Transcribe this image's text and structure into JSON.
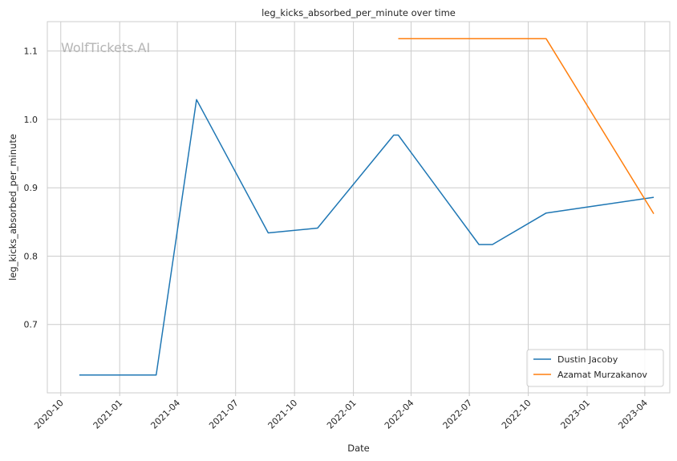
{
  "chart_data": {
    "type": "line",
    "title": "leg_kicks_absorbed_per_minute over time",
    "xlabel": "Date",
    "ylabel": "leg_kicks_absorbed_per_minute",
    "watermark": "WolfTickets.AI",
    "x_ticks": [
      "2020-10",
      "2021-01",
      "2021-04",
      "2021-07",
      "2021-10",
      "2022-01",
      "2022-04",
      "2022-07",
      "2022-10",
      "2023-01",
      "2023-04"
    ],
    "y_ticks": [
      "0.7",
      "0.8",
      "0.9",
      "1.0",
      "1.1"
    ],
    "xlim": [
      "2020-09-10",
      "2023-05-10"
    ],
    "ylim": [
      0.6,
      1.143
    ],
    "grid": true,
    "legend_position": "lower-right",
    "series": [
      {
        "name": "Dustin Jacoby",
        "color": "#1f77b4",
        "points": [
          {
            "x": "2020-10-30",
            "y": 0.626
          },
          {
            "x": "2021-02-27",
            "y": 0.626
          },
          {
            "x": "2021-05-01",
            "y": 1.029
          },
          {
            "x": "2021-08-21",
            "y": 0.834
          },
          {
            "x": "2021-11-06",
            "y": 0.841
          },
          {
            "x": "2022-03-05",
            "y": 0.977
          },
          {
            "x": "2022-03-12",
            "y": 0.977
          },
          {
            "x": "2022-07-16",
            "y": 0.817
          },
          {
            "x": "2022-08-06",
            "y": 0.817
          },
          {
            "x": "2022-10-29",
            "y": 0.863
          },
          {
            "x": "2023-04-15",
            "y": 0.886
          }
        ]
      },
      {
        "name": "Azamat Murzakanov",
        "color": "#ff7f0e",
        "points": [
          {
            "x": "2022-03-12",
            "y": 1.118
          },
          {
            "x": "2022-10-29",
            "y": 1.118
          },
          {
            "x": "2023-04-15",
            "y": 0.862
          }
        ]
      }
    ]
  }
}
